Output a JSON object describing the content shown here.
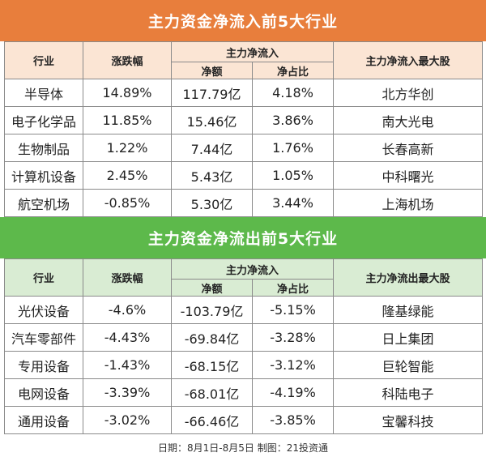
{
  "inflow": {
    "title": "主力资金净流入前5大行业",
    "headers": {
      "industry": "行业",
      "change": "涨跌幅",
      "main_net": "主力净流入",
      "net_amount": "净额",
      "net_ratio": "净占比",
      "top_stock": "主力净流入最大股"
    },
    "rows": [
      {
        "industry": "半导体",
        "change": "14.89%",
        "net": "117.79亿",
        "ratio": "4.18%",
        "stock": "北方华创"
      },
      {
        "industry": "电子化学品",
        "change": "11.85%",
        "net": "15.46亿",
        "ratio": "3.86%",
        "stock": "南大光电"
      },
      {
        "industry": "生物制品",
        "change": "1.22%",
        "net": "7.44亿",
        "ratio": "1.76%",
        "stock": "长春高新"
      },
      {
        "industry": "计算机设备",
        "change": "2.45%",
        "net": "5.43亿",
        "ratio": "1.05%",
        "stock": "中科曙光"
      },
      {
        "industry": "航空机场",
        "change": "-0.85%",
        "net": "5.30亿",
        "ratio": "3.44%",
        "stock": "上海机场"
      }
    ]
  },
  "outflow": {
    "title": "主力资金净流出前5大行业",
    "headers": {
      "industry": "行业",
      "change": "涨跌幅",
      "main_net": "主力净流入",
      "net_amount": "净额",
      "net_ratio": "净占比",
      "top_stock": "主力净流出最大股"
    },
    "rows": [
      {
        "industry": "光伏设备",
        "change": "-4.6%",
        "net": "-103.79亿",
        "ratio": "-5.15%",
        "stock": "隆基绿能"
      },
      {
        "industry": "汽车零部件",
        "change": "-4.43%",
        "net": "-69.84亿",
        "ratio": "-3.28%",
        "stock": "日上集团"
      },
      {
        "industry": "专用设备",
        "change": "-1.43%",
        "net": "-68.15亿",
        "ratio": "-3.12%",
        "stock": "巨轮智能"
      },
      {
        "industry": "电网设备",
        "change": "-3.39%",
        "net": "-68.01亿",
        "ratio": "-4.19%",
        "stock": "科陆电子"
      },
      {
        "industry": "通用设备",
        "change": "-3.02%",
        "net": "-66.46亿",
        "ratio": "-3.85%",
        "stock": "宝馨科技"
      }
    ]
  },
  "footer": "日期：8月1日-8月5日 制图：21投资通",
  "colors": {
    "inflow_banner": "#e87e3c",
    "inflow_header": "#fbe5d4",
    "outflow_banner": "#5db94b",
    "outflow_header": "#d9ecd3"
  }
}
